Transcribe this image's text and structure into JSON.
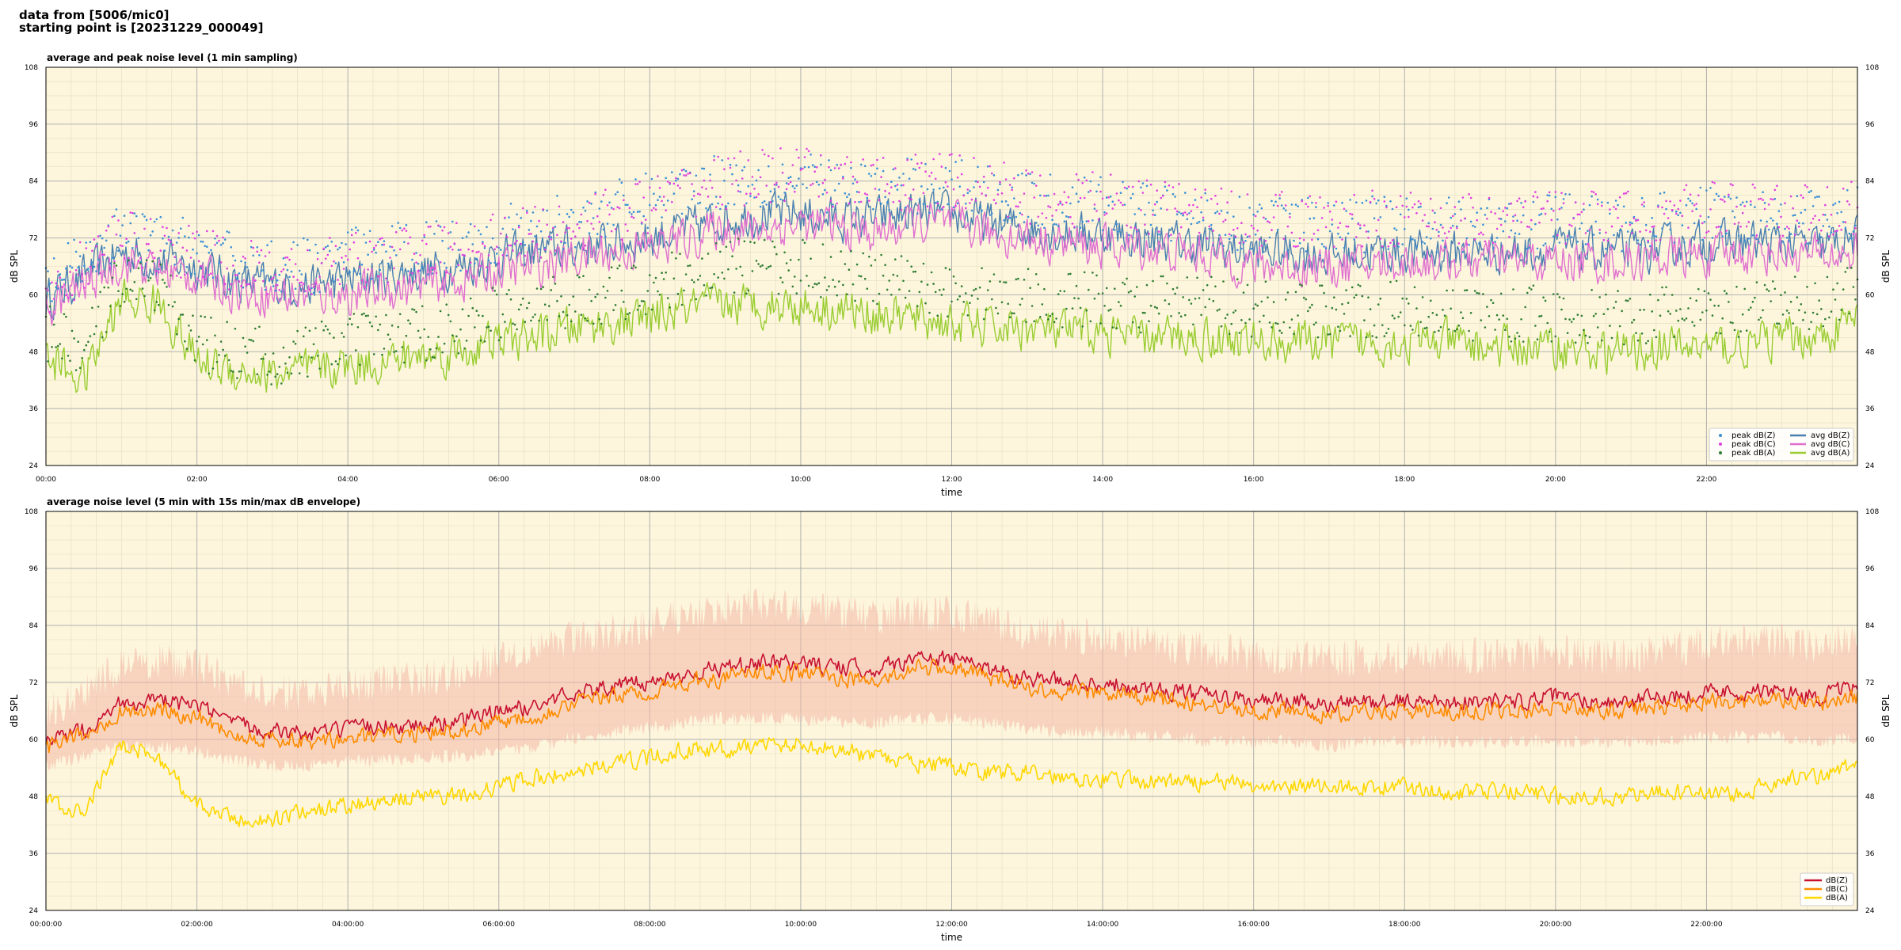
{
  "header": {
    "line1": "data from [5006/mic0]",
    "line2": "starting point is [20231229_000049]"
  },
  "colors": {
    "background": "#fdf6dc",
    "peak_z": "#3a8fd6",
    "peak_c": "#e040e0",
    "peak_a": "#2e7d32",
    "avg_z": "#4a7fb0",
    "avg_c": "#e070d0",
    "avg_a": "#9acd32",
    "dbz": "#c8102e",
    "dbc": "#ff8c00",
    "dba": "#ffd700",
    "envelope": "#f4b8a8"
  },
  "chart_data": [
    {
      "type": "line",
      "title": "average and peak noise level (1 min sampling)",
      "xlabel": "time",
      "ylabel": "dB SPL",
      "ylim": [
        24,
        108
      ],
      "yticks": [
        24,
        36,
        48,
        60,
        72,
        84,
        96,
        108
      ],
      "xlim_hours": [
        0,
        24
      ],
      "xticks": [
        "00:00",
        "02:00",
        "04:00",
        "06:00",
        "08:00",
        "10:00",
        "12:00",
        "14:00",
        "16:00",
        "18:00",
        "20:00",
        "22:00"
      ],
      "grid": true,
      "legend": "bottom-right",
      "legend_entries": [
        "peak dB(Z)",
        "peak dB(C)",
        "peak dB(A)",
        "avg dB(Z)",
        "avg dB(C)",
        "avg dB(A)"
      ],
      "x": [
        0,
        0.5,
        1,
        1.5,
        2,
        2.5,
        3,
        3.5,
        4,
        4.5,
        5,
        5.5,
        6,
        6.5,
        7,
        7.5,
        8,
        8.5,
        9,
        9.5,
        10,
        10.5,
        11,
        11.5,
        12,
        12.5,
        13,
        13.5,
        14,
        14.5,
        15,
        15.5,
        16,
        16.5,
        17,
        17.5,
        18,
        18.5,
        19,
        19.5,
        20,
        20.5,
        21,
        21.5,
        22,
        22.5,
        23,
        23.5,
        24
      ],
      "series": [
        {
          "name": "avg dB(Z)",
          "values": [
            59,
            64,
            69,
            67,
            66,
            63,
            62,
            62,
            63,
            64,
            65,
            66,
            68,
            69,
            70,
            71,
            72,
            74,
            76,
            77,
            77,
            76,
            76,
            77,
            77,
            75,
            74,
            73,
            73,
            72,
            71,
            70,
            69,
            69,
            68,
            69,
            69,
            69,
            69,
            69,
            70,
            69,
            69,
            70,
            71,
            71,
            71,
            70,
            72
          ]
        },
        {
          "name": "avg dB(C)",
          "values": [
            57,
            62,
            67,
            65,
            64,
            61,
            60,
            60,
            60,
            61,
            62,
            63,
            65,
            66,
            68,
            69,
            70,
            72,
            74,
            74,
            75,
            74,
            73,
            75,
            75,
            73,
            72,
            71,
            70,
            70,
            69,
            68,
            66,
            66,
            66,
            66,
            67,
            67,
            67,
            67,
            67,
            67,
            67,
            68,
            68,
            69,
            69,
            68,
            69
          ]
        },
        {
          "name": "avg dB(A)",
          "values": [
            47,
            42,
            59,
            58,
            46,
            44,
            43,
            44,
            45,
            46,
            47,
            48,
            50,
            51,
            53,
            54,
            55,
            57,
            58,
            58,
            58,
            57,
            56,
            55,
            54,
            53,
            53,
            52,
            52,
            51,
            51,
            51,
            50,
            50,
            50,
            50,
            50,
            50,
            49,
            49,
            49,
            48,
            48,
            49,
            49,
            49,
            51,
            51,
            55
          ]
        },
        {
          "name": "peak dB(Z)",
          "values": [
            62,
            67,
            73,
            71,
            70,
            67,
            66,
            66,
            68,
            69,
            70,
            71,
            73,
            74,
            76,
            78,
            80,
            83,
            84,
            84,
            84,
            83,
            82,
            83,
            83,
            82,
            80,
            79,
            79,
            78,
            77,
            76,
            75,
            75,
            74,
            75,
            75,
            75,
            75,
            75,
            76,
            75,
            75,
            76,
            77,
            77,
            77,
            76,
            77
          ]
        },
        {
          "name": "peak dB(C)",
          "values": [
            61,
            66,
            72,
            70,
            69,
            66,
            65,
            65,
            67,
            68,
            69,
            70,
            72,
            73,
            75,
            77,
            79,
            82,
            84,
            85,
            85,
            84,
            83,
            84,
            84,
            83,
            81,
            80,
            80,
            79,
            78,
            77,
            76,
            76,
            75,
            76,
            76,
            76,
            76,
            76,
            77,
            76,
            76,
            77,
            78,
            78,
            78,
            77,
            78
          ]
        },
        {
          "name": "peak dB(A)",
          "values": [
            52,
            48,
            64,
            62,
            50,
            48,
            47,
            48,
            50,
            51,
            52,
            53,
            56,
            57,
            59,
            60,
            62,
            64,
            66,
            66,
            66,
            65,
            63,
            62,
            61,
            60,
            60,
            59,
            59,
            58,
            58,
            58,
            57,
            57,
            57,
            57,
            57,
            57,
            56,
            56,
            56,
            55,
            55,
            56,
            56,
            56,
            58,
            58,
            62
          ]
        }
      ]
    },
    {
      "type": "line",
      "title": "average noise level (5 min with 15s min/max dB envelope)",
      "xlabel": "time",
      "ylabel": "dB SPL",
      "ylim": [
        24,
        108
      ],
      "yticks": [
        24,
        36,
        48,
        60,
        72,
        84,
        96,
        108
      ],
      "xlim_hours": [
        0,
        24
      ],
      "xticks": [
        "00:00:00",
        "02:00:00",
        "04:00:00",
        "06:00:00",
        "08:00:00",
        "10:00:00",
        "12:00:00",
        "14:00:00",
        "16:00:00",
        "18:00:00",
        "20:00:00",
        "22:00:00"
      ],
      "grid": true,
      "legend": "bottom-right",
      "legend_entries": [
        "dB(Z)",
        "dB(C)",
        "dB(A)"
      ],
      "x": [
        0,
        0.5,
        1,
        1.5,
        2,
        2.5,
        3,
        3.5,
        4,
        4.5,
        5,
        5.5,
        6,
        6.5,
        7,
        7.5,
        8,
        8.5,
        9,
        9.5,
        10,
        10.5,
        11,
        11.5,
        12,
        12.5,
        13,
        13.5,
        14,
        14.5,
        15,
        15.5,
        16,
        16.5,
        17,
        17.5,
        18,
        18.5,
        19,
        19.5,
        20,
        20.5,
        21,
        21.5,
        22,
        22.5,
        23,
        23.5,
        24
      ],
      "series": [
        {
          "name": "dB(Z)",
          "values": [
            59,
            62,
            68,
            68,
            67,
            63,
            62,
            61,
            62,
            63,
            63,
            64,
            66,
            67,
            70,
            71,
            72,
            74,
            75,
            76,
            76,
            75,
            75,
            77,
            77,
            75,
            73,
            72,
            72,
            71,
            70,
            69,
            68,
            68,
            67,
            68,
            68,
            68,
            68,
            68,
            69,
            68,
            68,
            69,
            70,
            70,
            70,
            69,
            71
          ]
        },
        {
          "name": "dB(C)",
          "values": [
            58,
            61,
            66,
            66,
            65,
            61,
            60,
            59,
            60,
            61,
            61,
            62,
            64,
            65,
            68,
            69,
            70,
            72,
            73,
            74,
            74,
            73,
            72,
            75,
            75,
            73,
            71,
            70,
            70,
            69,
            68,
            67,
            66,
            66,
            65,
            66,
            66,
            66,
            66,
            66,
            67,
            66,
            66,
            67,
            68,
            68,
            68,
            67,
            69
          ]
        },
        {
          "name": "dB(A)",
          "values": [
            47,
            44,
            59,
            56,
            46,
            43,
            43,
            45,
            46,
            47,
            48,
            48,
            50,
            52,
            53,
            55,
            56,
            58,
            58,
            59,
            59,
            58,
            56,
            55,
            54,
            53,
            53,
            52,
            52,
            51,
            51,
            51,
            50,
            50,
            50,
            50,
            50,
            49,
            49,
            49,
            48,
            48,
            48,
            49,
            49,
            48,
            52,
            52,
            55
          ]
        }
      ],
      "envelope": {
        "upper": [
          64,
          68,
          74,
          75,
          74,
          70,
          68,
          68,
          70,
          71,
          71,
          73,
          76,
          78,
          80,
          81,
          82,
          85,
          86,
          87,
          86,
          85,
          84,
          85,
          85,
          83,
          81,
          80,
          80,
          79,
          78,
          77,
          76,
          76,
          75,
          76,
          76,
          76,
          76,
          76,
          77,
          76,
          76,
          77,
          79,
          79,
          79,
          78,
          80
        ],
        "lower": [
          56,
          58,
          60,
          60,
          59,
          57,
          56,
          56,
          57,
          57,
          58,
          58,
          59,
          60,
          62,
          63,
          64,
          65,
          66,
          66,
          66,
          65,
          65,
          66,
          66,
          65,
          64,
          63,
          63,
          62,
          62,
          61,
          61,
          61,
          60,
          61,
          61,
          61,
          61,
          61,
          61,
          61,
          61,
          61,
          62,
          62,
          62,
          61,
          62
        ]
      }
    }
  ]
}
